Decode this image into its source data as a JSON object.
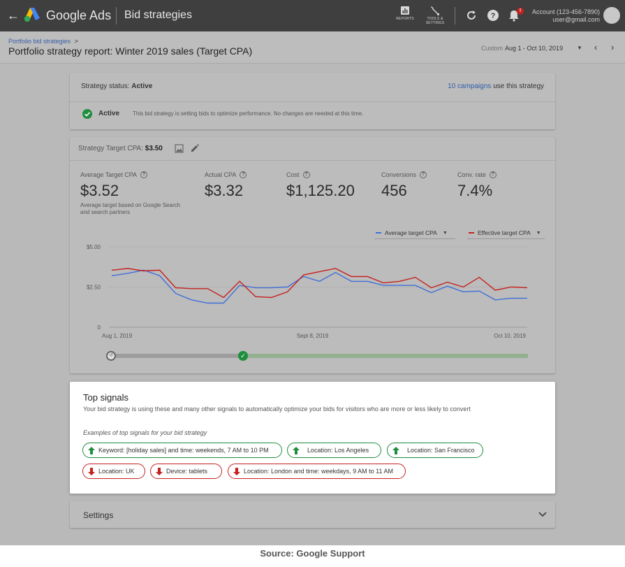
{
  "header": {
    "brand": "Google Ads",
    "section": "Bid strategies",
    "tools": [
      {
        "label": "REPORTS",
        "icon": "reports-icon"
      },
      {
        "label": "TOOLS & SETTINGS",
        "icon": "wrench-icon"
      }
    ],
    "notification_count": "!",
    "account_name": "Account (123-456-7890)",
    "account_email": "user@gmail.com"
  },
  "subheader": {
    "breadcrumb": "Portfolio bid strategies",
    "breadcrumb_chevron": ">",
    "title": "Portfolio strategy report: Winter 2019 sales (Target CPA)",
    "date_label": "Custom",
    "date_value": "Aug 1 - Oct 10, 2019"
  },
  "status_card": {
    "status_label": "Strategy status:",
    "status_value": "Active",
    "campaigns_link": "10 campaigns",
    "campaigns_suffix": "use this strategy",
    "active_label": "Active",
    "active_desc": "This bid strategy is setting bids to optimize performance. No changes are needed at this time."
  },
  "strategy_card": {
    "head_label": "Strategy Target CPA:",
    "head_value": "$3.50",
    "metrics": [
      {
        "label": "Average Target CPA",
        "value": "$3.52",
        "note": "Average target based on Google Search and search partners"
      },
      {
        "label": "Actual CPA",
        "value": "$3.32",
        "note": ""
      },
      {
        "label": "Cost",
        "value": "$1,125.20",
        "note": ""
      },
      {
        "label": "Conversions",
        "value": "456",
        "note": ""
      },
      {
        "label": "Conv. rate",
        "value": "7.4%",
        "note": ""
      }
    ]
  },
  "chart_data": {
    "type": "line",
    "title": "",
    "xlabel": "",
    "ylabel": "",
    "x_tick_labels": [
      "Aug 1, 2019",
      "Sept 8, 2019",
      "Oct 10, 2019"
    ],
    "y_tick_labels": [
      "$5.00",
      "$2.50",
      "0"
    ],
    "ylim": [
      0,
      5
    ],
    "grid": true,
    "legend_position": "top-right",
    "series": [
      {
        "name": "Average target CPA",
        "color": "#3f6fd8",
        "values": [
          3.2,
          3.35,
          3.55,
          3.2,
          2.1,
          1.7,
          1.5,
          1.5,
          2.6,
          2.45,
          2.45,
          2.5,
          3.15,
          2.85,
          3.4,
          2.85,
          2.85,
          2.6,
          2.6,
          2.6,
          2.15,
          2.55,
          2.2,
          2.25,
          1.7,
          1.8,
          1.8
        ]
      },
      {
        "name": "Effective target CPA",
        "color": "#c5221f",
        "values": [
          3.55,
          3.65,
          3.5,
          3.55,
          2.45,
          2.4,
          2.4,
          1.85,
          2.85,
          1.9,
          1.85,
          2.2,
          3.25,
          3.45,
          3.65,
          3.15,
          3.15,
          2.75,
          2.85,
          3.1,
          2.45,
          2.8,
          2.5,
          3.1,
          2.3,
          2.5,
          2.45
        ]
      }
    ]
  },
  "signals": {
    "title": "Top signals",
    "description": "Your bid strategy is using these and many other signals to automatically optimize your bids for visitors who are more or less likely to convert",
    "examples_label": "Examples of top signals for your bid strategy",
    "positive": [
      "Keyword: [holiday sales] and time: weekends, 7 AM to 10 PM",
      "Location: Los Angeles",
      "Location: San Francisco"
    ],
    "negative": [
      "Location: UK",
      "Device: tablets",
      "Location: London and time: weekdays, 9 AM to 11 AM"
    ],
    "positive_color": "#1e8e3e",
    "negative_color": "#c5221f"
  },
  "settings": {
    "label": "Settings"
  },
  "source": "Source: Google Support"
}
